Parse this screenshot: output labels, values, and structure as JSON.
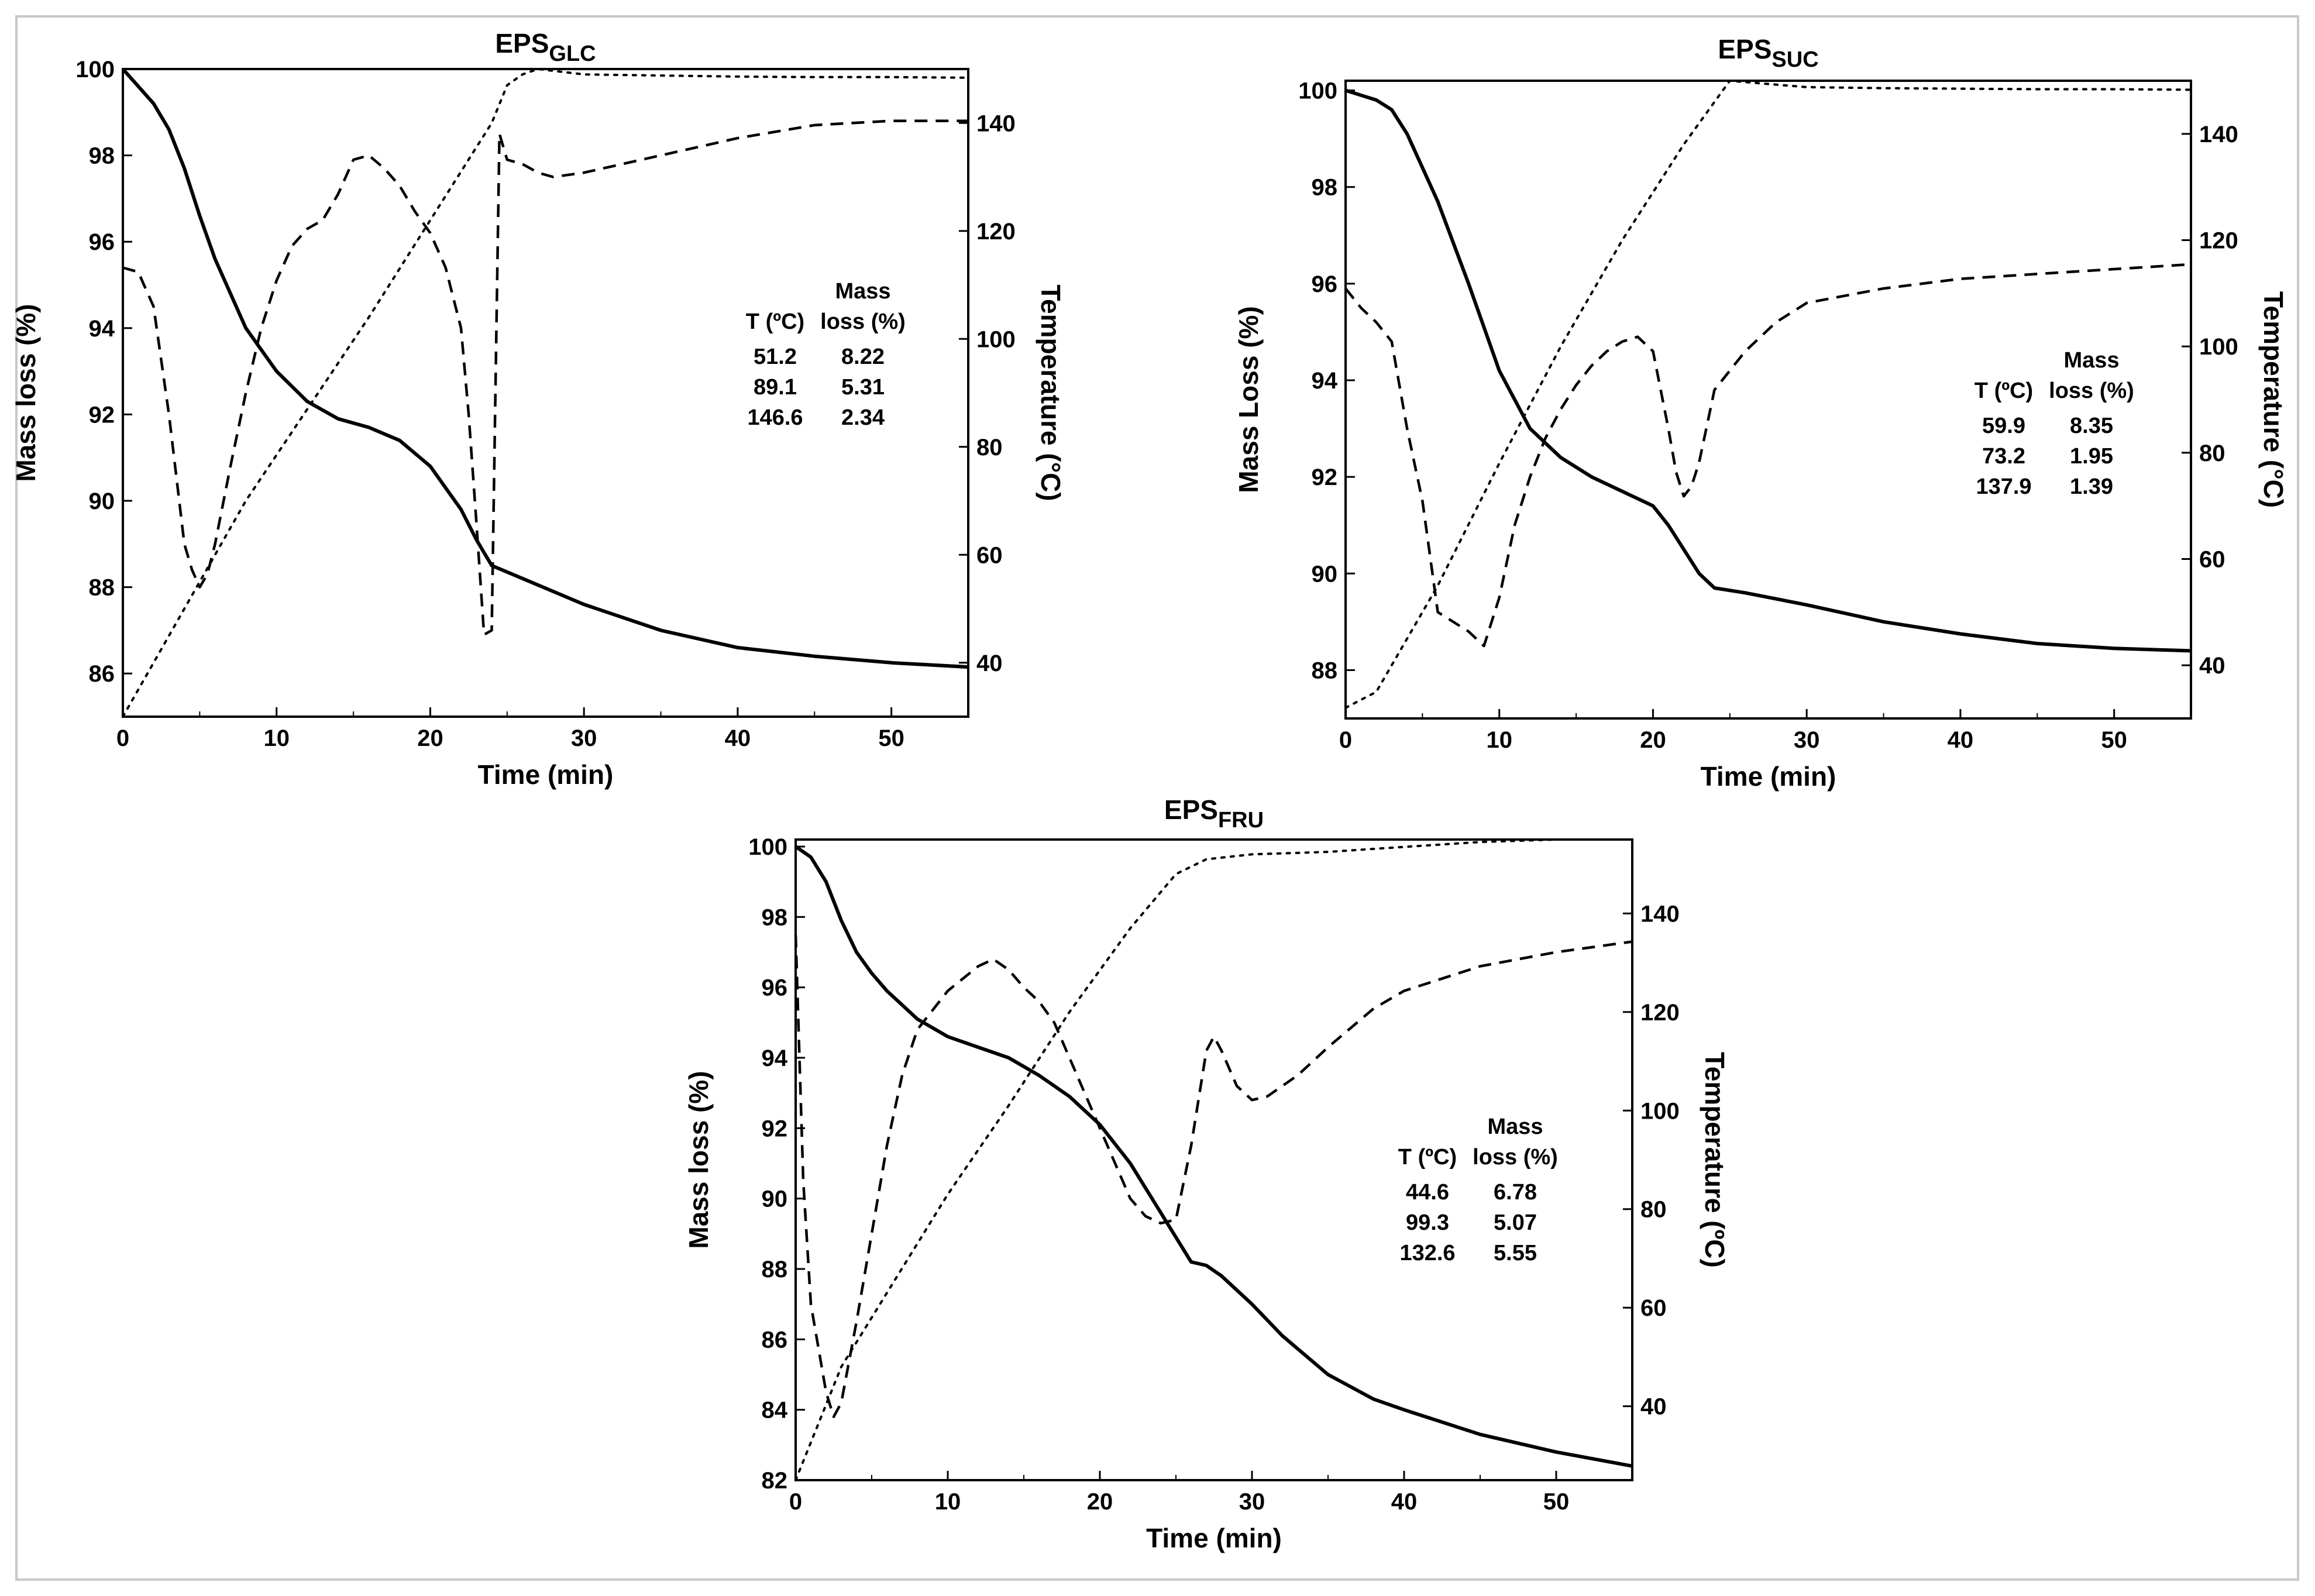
{
  "figure": {
    "background": "#ffffff",
    "line_color": "#000000",
    "frame_color": "#c8c8c8"
  },
  "chart_data": [
    {
      "type": "line",
      "title": {
        "main": "EPS",
        "sub": "GLC"
      },
      "xlabel": "Time (min)",
      "ylabel": "Mass loss (%)",
      "y2label": "Temperature (°C)",
      "xlim": [
        0,
        55
      ],
      "ylim": [
        85,
        100
      ],
      "y2lim": [
        30,
        150
      ],
      "xticks": [
        0,
        10,
        20,
        30,
        40,
        50
      ],
      "yticks": [
        86,
        88,
        90,
        92,
        94,
        96,
        98,
        100
      ],
      "y2ticks": [
        40,
        60,
        80,
        100,
        120,
        140
      ],
      "grid": false,
      "series": [
        {
          "style": "solid",
          "axis": "left",
          "x": [
            0,
            1,
            2,
            3,
            4,
            5,
            6,
            8,
            10,
            12,
            14,
            16,
            18,
            20,
            21,
            22,
            23,
            23.5,
            24,
            26,
            30,
            35,
            40,
            45,
            50,
            55
          ],
          "y": [
            100,
            99.6,
            99.2,
            98.6,
            97.7,
            96.6,
            95.6,
            94.0,
            93.0,
            92.3,
            91.9,
            91.7,
            91.4,
            90.8,
            90.3,
            89.8,
            89.1,
            88.8,
            88.5,
            88.2,
            87.6,
            87.0,
            86.6,
            86.4,
            86.25,
            86.15
          ]
        },
        {
          "style": "dashed",
          "axis": "left",
          "x": [
            0,
            1,
            2,
            3,
            4,
            4.5,
            5,
            5.5,
            6,
            7,
            8,
            9,
            10,
            11,
            12,
            13,
            14,
            15,
            16,
            17,
            18,
            19,
            20,
            21,
            22,
            22.5,
            23,
            23.5,
            24,
            24.5,
            25,
            26,
            27,
            28,
            30,
            35,
            40,
            45,
            50,
            55
          ],
          "y": [
            95.4,
            95.3,
            94.5,
            92.0,
            89.0,
            88.4,
            88.0,
            88.3,
            89.0,
            90.8,
            92.5,
            94.0,
            95.1,
            95.9,
            96.3,
            96.5,
            97.1,
            97.9,
            98.0,
            97.7,
            97.3,
            96.7,
            96.2,
            95.4,
            94.0,
            92.0,
            89.5,
            86.9,
            87.0,
            98.5,
            97.9,
            97.8,
            97.6,
            97.5,
            97.6,
            98.0,
            98.4,
            98.7,
            98.8,
            98.8
          ]
        },
        {
          "style": "dotted",
          "axis": "right",
          "x": [
            0,
            4,
            8,
            12,
            16,
            20,
            24,
            25,
            26,
            27,
            30,
            35,
            40,
            45,
            50,
            55
          ],
          "y": [
            30,
            50,
            70,
            87,
            104,
            122,
            140,
            147,
            149,
            150,
            149,
            148.8,
            148.6,
            148.5,
            148.5,
            148.4
          ]
        }
      ],
      "table": {
        "headers": [
          [
            "",
            "Mass"
          ],
          [
            "T (ºC)",
            "loss (%)"
          ]
        ],
        "rows": [
          [
            "51.2",
            "8.22"
          ],
          [
            "89.1",
            "5.31"
          ],
          [
            "146.6",
            "2.34"
          ]
        ]
      }
    },
    {
      "type": "line",
      "title": {
        "main": "EPS",
        "sub": "SUC"
      },
      "xlabel": "Time (min)",
      "ylabel": "Mass Loss (%)",
      "y2label": "Temperature (°C)",
      "xlim": [
        0,
        55
      ],
      "ylim": [
        87,
        100.2
      ],
      "y2lim": [
        30,
        150
      ],
      "xticks": [
        0,
        10,
        20,
        30,
        40,
        50
      ],
      "yticks": [
        88,
        90,
        92,
        94,
        96,
        98,
        100
      ],
      "y2ticks": [
        40,
        60,
        80,
        100,
        120,
        140
      ],
      "grid": false,
      "series": [
        {
          "style": "solid",
          "axis": "left",
          "x": [
            0,
            1,
            2,
            3,
            4,
            5,
            6,
            8,
            10,
            12,
            14,
            16,
            18,
            20,
            21,
            22,
            23,
            24,
            26,
            30,
            35,
            40,
            45,
            50,
            55
          ],
          "y": [
            100,
            99.9,
            99.8,
            99.6,
            99.1,
            98.4,
            97.7,
            96.0,
            94.2,
            93.0,
            92.4,
            92.0,
            91.7,
            91.4,
            91.0,
            90.5,
            90.0,
            89.7,
            89.6,
            89.35,
            89.0,
            88.75,
            88.55,
            88.45,
            88.4
          ]
        },
        {
          "style": "dashed",
          "axis": "left",
          "x": [
            0,
            1,
            2,
            3,
            4,
            5,
            6,
            7,
            8,
            9,
            10,
            11,
            12,
            13,
            14,
            15,
            16,
            17,
            18,
            19,
            20,
            21,
            21.5,
            22,
            22.5,
            23,
            24,
            25,
            26,
            28,
            30,
            35,
            40,
            45,
            50,
            55
          ],
          "y": [
            95.9,
            95.5,
            95.2,
            94.8,
            93.0,
            91.5,
            89.2,
            89.0,
            88.8,
            88.5,
            89.5,
            91.0,
            92.0,
            92.8,
            93.4,
            93.9,
            94.3,
            94.6,
            94.8,
            94.9,
            94.6,
            93.0,
            92.1,
            91.6,
            91.8,
            92.3,
            93.8,
            94.2,
            94.6,
            95.2,
            95.6,
            95.9,
            96.1,
            96.2,
            96.3,
            96.4
          ]
        },
        {
          "style": "dotted",
          "axis": "right",
          "x": [
            0,
            2,
            6,
            10,
            14,
            18,
            22,
            24,
            25,
            27,
            30,
            35,
            40,
            45,
            50,
            55
          ],
          "y": [
            32,
            35,
            55,
            78,
            100,
            120,
            138,
            146,
            150,
            149.5,
            148.8,
            148.6,
            148.5,
            148.4,
            148.4,
            148.3
          ]
        }
      ],
      "table": {
        "headers": [
          [
            "",
            "Mass"
          ],
          [
            "T (ºC)",
            "loss (%)"
          ]
        ],
        "rows": [
          [
            "59.9",
            "8.35"
          ],
          [
            "73.2",
            "1.95"
          ],
          [
            "137.9",
            "1.39"
          ]
        ]
      }
    },
    {
      "type": "line",
      "title": {
        "main": "EPS",
        "sub": "FRU"
      },
      "xlabel": "Time (min)",
      "ylabel": "Mass loss (%)",
      "y2label": "Temperature (ºC)",
      "xlim": [
        0,
        55
      ],
      "ylim": [
        82,
        100.2
      ],
      "y2lim": [
        25,
        155
      ],
      "xticks": [
        0,
        10,
        20,
        30,
        40,
        50
      ],
      "yticks": [
        82,
        84,
        86,
        88,
        90,
        92,
        94,
        96,
        98,
        100
      ],
      "y2ticks": [
        40,
        60,
        80,
        100,
        120,
        140
      ],
      "grid": false,
      "series": [
        {
          "style": "solid",
          "axis": "left",
          "x": [
            0,
            1,
            2,
            3,
            4,
            5,
            6,
            8,
            10,
            12,
            14,
            16,
            18,
            20,
            22,
            24,
            26,
            27,
            28,
            30,
            32,
            35,
            38,
            40,
            45,
            50,
            55
          ],
          "y": [
            100,
            99.7,
            99.0,
            97.9,
            97.0,
            96.4,
            95.9,
            95.1,
            94.6,
            94.3,
            94.0,
            93.5,
            92.9,
            92.1,
            91.0,
            89.6,
            88.2,
            88.1,
            87.8,
            87.0,
            86.1,
            85.0,
            84.3,
            84.0,
            83.3,
            82.8,
            82.4
          ]
        },
        {
          "style": "dashed",
          "axis": "left",
          "x": [
            0,
            0.5,
            1,
            2,
            2.5,
            3,
            4,
            5,
            6,
            7,
            8,
            10,
            12,
            13,
            14,
            15,
            16,
            17,
            18,
            19,
            20,
            21,
            22,
            23,
            24,
            25,
            26,
            27,
            27.5,
            28,
            29,
            30,
            31,
            33,
            35,
            38,
            40,
            45,
            50,
            55
          ],
          "y": [
            97.5,
            90.5,
            87.0,
            84.5,
            83.8,
            84.2,
            86.5,
            89.0,
            91.5,
            93.5,
            94.8,
            95.9,
            96.6,
            96.8,
            96.5,
            96.0,
            95.6,
            95.0,
            94.0,
            93.0,
            92.0,
            91.0,
            90.0,
            89.5,
            89.3,
            89.4,
            91.5,
            94.2,
            94.6,
            94.2,
            93.2,
            92.8,
            92.9,
            93.5,
            94.3,
            95.4,
            95.9,
            96.6,
            97.0,
            97.3
          ]
        },
        {
          "style": "dotted",
          "axis": "right",
          "x": [
            0,
            3,
            6,
            10,
            14,
            18,
            22,
            25,
            27,
            30,
            35,
            40,
            45,
            50,
            55
          ],
          "y": [
            25,
            48,
            63,
            83,
            101,
            120,
            137,
            148,
            151,
            152,
            152.5,
            153.5,
            154.5,
            155,
            155
          ]
        }
      ],
      "table": {
        "headers": [
          [
            "",
            "Mass"
          ],
          [
            "T (ºC)",
            "loss (%)"
          ]
        ],
        "rows": [
          [
            "44.6",
            "6.78"
          ],
          [
            "99.3",
            "5.07"
          ],
          [
            "132.6",
            "5.55"
          ]
        ]
      }
    }
  ]
}
